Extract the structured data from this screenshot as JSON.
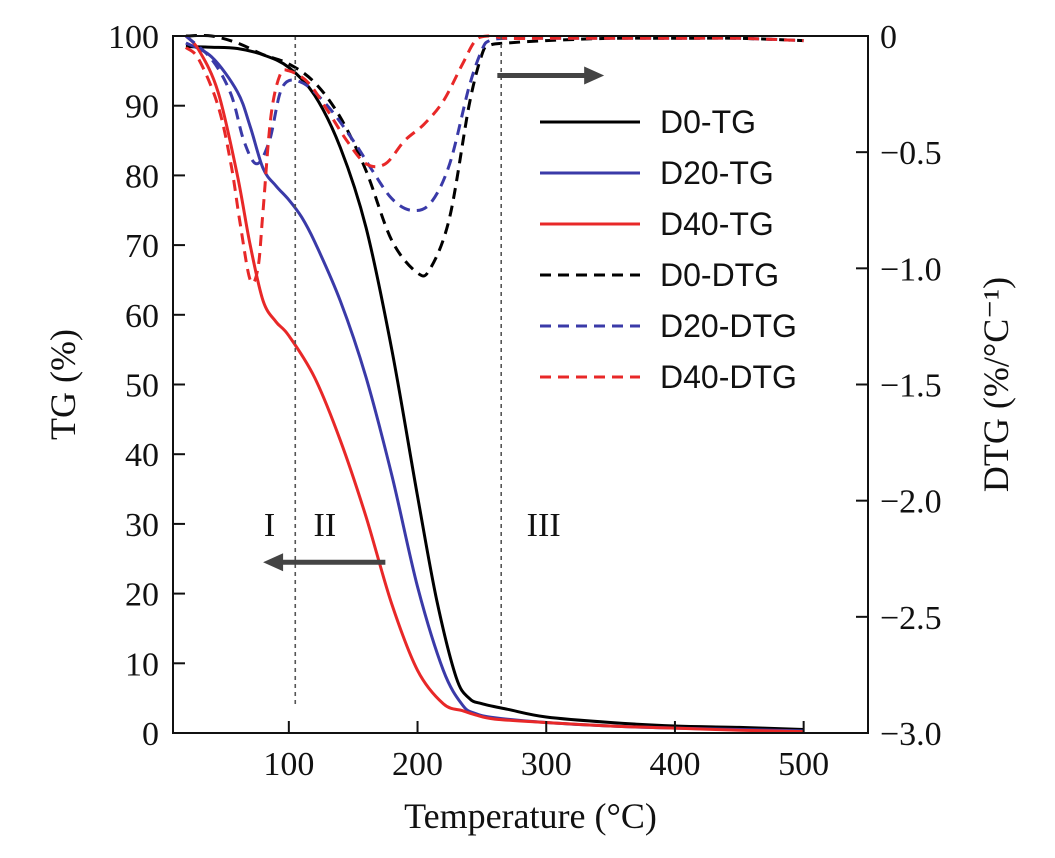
{
  "chart_data": {
    "type": "line",
    "title": "",
    "xlabel": "Temperature (°C)",
    "ylabel_left": "TG (%)",
    "ylabel_right": "DTG (%/°C⁻¹)",
    "xlim": [
      10,
      550
    ],
    "ylim_left": [
      0,
      100
    ],
    "ylim_right": [
      -3.0,
      0
    ],
    "x_ticks": [
      100,
      200,
      300,
      400,
      500
    ],
    "x_tick_labels": [
      "100",
      "200",
      "300",
      "400",
      "500"
    ],
    "y_left_ticks": [
      0,
      10,
      20,
      30,
      40,
      50,
      60,
      70,
      80,
      90,
      100
    ],
    "y_left_tick_labels": [
      "0",
      "10",
      "20",
      "30",
      "40",
      "50",
      "60",
      "70",
      "80",
      "90",
      "100"
    ],
    "y_right_ticks": [
      0,
      -0.5,
      -1.0,
      -1.5,
      -2.0,
      -2.5,
      -3.0
    ],
    "y_right_tick_labels": [
      "0",
      "−0.5",
      "−1.0",
      "−1.5",
      "−2.0",
      "−2.5",
      "−3.0"
    ],
    "grid": false,
    "legend_position": "top-right",
    "series": [
      {
        "name": "D0-TG",
        "axis": "left",
        "color": "#000000",
        "dashed": false,
        "x": [
          20,
          40,
          60,
          80,
          100,
          120,
          140,
          160,
          180,
          200,
          215,
          230,
          240,
          250,
          270,
          300,
          350,
          400,
          450,
          500
        ],
        "y": [
          98.5,
          98.4,
          98.2,
          97.3,
          95.5,
          91.5,
          84,
          72.5,
          55,
          34,
          19,
          8,
          5,
          4.2,
          3.4,
          2.3,
          1.5,
          1.0,
          0.8,
          0.5
        ]
      },
      {
        "name": "D20-TG",
        "axis": "left",
        "color": "#3a3aa8",
        "dashed": false,
        "x": [
          20,
          40,
          60,
          70,
          80,
          90,
          100,
          110,
          120,
          140,
          160,
          180,
          200,
          220,
          235,
          245,
          260,
          300,
          350,
          400,
          450,
          500
        ],
        "y": [
          99,
          97,
          92,
          87,
          81,
          78.5,
          76.5,
          74,
          70.5,
          62,
          51,
          37,
          21,
          9,
          4,
          2.8,
          2.2,
          1.5,
          1.0,
          0.7,
          0.5,
          0.3
        ]
      },
      {
        "name": "D40-TG",
        "axis": "left",
        "color": "#e82828",
        "dashed": false,
        "x": [
          20,
          30,
          45,
          60,
          70,
          80,
          90,
          100,
          120,
          140,
          160,
          180,
          200,
          220,
          235,
          245,
          260,
          300,
          350,
          400,
          450,
          500
        ],
        "y": [
          100,
          98,
          92,
          80,
          70,
          62,
          59,
          57,
          51,
          42,
          31,
          18.5,
          9,
          4.2,
          3.2,
          2.6,
          2.0,
          1.5,
          1.0,
          0.7,
          0.4,
          0.2
        ]
      },
      {
        "name": "D0-DTG",
        "axis": "right",
        "color": "#000000",
        "dashed": true,
        "x": [
          20,
          40,
          60,
          80,
          100,
          120,
          140,
          160,
          180,
          200,
          210,
          225,
          240,
          250,
          256,
          270,
          300,
          350,
          400,
          450,
          500
        ],
        "y": [
          0,
          0,
          -0.03,
          -0.08,
          -0.12,
          -0.2,
          -0.35,
          -0.58,
          -0.88,
          -1.02,
          -1.0,
          -0.78,
          -0.3,
          -0.08,
          -0.04,
          -0.03,
          -0.02,
          -0.01,
          -0.01,
          -0.01,
          -0.02
        ]
      },
      {
        "name": "D20-DTG",
        "axis": "right",
        "color": "#3a3aa8",
        "dashed": true,
        "x": [
          20,
          40,
          55,
          65,
          75,
          85,
          95,
          110,
          130,
          150,
          165,
          180,
          195,
          210,
          225,
          240,
          250,
          256,
          270,
          300,
          350,
          400,
          450,
          500
        ],
        "y": [
          0,
          -0.1,
          -0.25,
          -0.45,
          -0.55,
          -0.45,
          -0.22,
          -0.2,
          -0.3,
          -0.45,
          -0.58,
          -0.7,
          -0.75,
          -0.72,
          -0.55,
          -0.22,
          -0.06,
          -0.02,
          -0.01,
          -0.01,
          -0.01,
          -0.01,
          -0.01,
          -0.02
        ]
      },
      {
        "name": "D40-DTG",
        "axis": "right",
        "color": "#e82828",
        "dashed": true,
        "x": [
          20,
          30,
          45,
          55,
          62,
          70,
          76,
          80,
          86,
          93,
          100,
          115,
          130,
          145,
          160,
          175,
          190,
          205,
          220,
          235,
          245,
          255,
          270,
          300,
          350,
          400,
          450,
          500
        ],
        "y": [
          -0.05,
          -0.1,
          -0.3,
          -0.55,
          -0.8,
          -1.05,
          -1.0,
          -0.75,
          -0.35,
          -0.17,
          -0.15,
          -0.2,
          -0.32,
          -0.45,
          -0.55,
          -0.55,
          -0.45,
          -0.38,
          -0.28,
          -0.12,
          -0.02,
          0,
          -0.01,
          -0.01,
          -0.01,
          -0.01,
          -0.01,
          -0.02
        ]
      }
    ],
    "vlines": [
      {
        "x": 105,
        "style": "dotted"
      },
      {
        "x": 265,
        "style": "dotted"
      }
    ],
    "region_labels": [
      {
        "text": "I",
        "x": 85,
        "y": 30
      },
      {
        "text": "II",
        "x": 128,
        "y": 30
      },
      {
        "text": "III",
        "x": 298,
        "y": 30
      }
    ],
    "arrows": [
      {
        "name": "tg-axis-arrow",
        "direction": "left",
        "from_x": 175,
        "to_x": 80,
        "y_axis": "left",
        "y": 24.5
      },
      {
        "name": "dtg-axis-arrow",
        "direction": "right",
        "from_x": 262,
        "to_x": 345,
        "y_axis": "right",
        "y": -0.17
      }
    ]
  }
}
